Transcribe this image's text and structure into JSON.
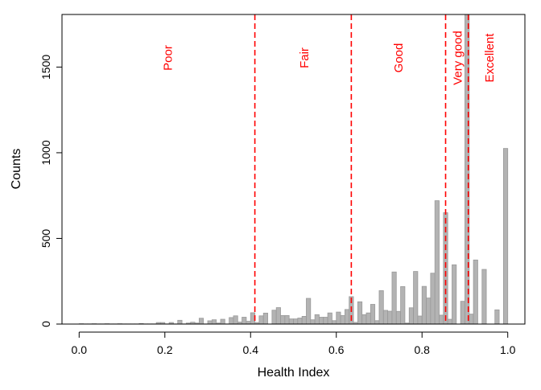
{
  "chart_data": {
    "type": "bar",
    "subtype": "histogram",
    "title": "",
    "xlabel": "Health Index",
    "ylabel": "Counts",
    "xlim": [
      -0.04,
      1.04
    ],
    "ylim": [
      0,
      1807
    ],
    "x_ticks": [
      0.0,
      0.2,
      0.4,
      0.6,
      0.8,
      1.0
    ],
    "x_tick_labels": [
      "0.0",
      "0.2",
      "0.4",
      "0.6",
      "0.8",
      "1.0"
    ],
    "y_ticks": [
      0,
      500,
      1000,
      1500
    ],
    "y_tick_labels": [
      "0",
      "500",
      "1000",
      "1500"
    ],
    "bin_width": 0.01,
    "bin_start": 0.0,
    "counts": [
      2,
      1,
      1,
      2,
      1,
      1,
      2,
      1,
      1,
      2,
      1,
      1,
      1,
      1,
      3,
      1,
      1,
      1,
      9,
      9,
      1,
      9,
      1,
      22,
      1,
      6,
      11,
      6,
      34,
      1,
      19,
      25,
      6,
      28,
      1,
      38,
      48,
      12,
      40,
      16,
      66,
      9,
      48,
      64,
      0,
      81,
      96,
      50,
      50,
      30,
      30,
      35,
      45,
      150,
      25,
      55,
      40,
      40,
      65,
      20,
      70,
      50,
      85,
      160,
      10,
      130,
      55,
      65,
      115,
      20,
      195,
      80,
      75,
      304,
      74,
      219,
      6,
      95,
      307,
      47,
      220,
      152,
      297,
      720,
      52,
      650,
      28,
      346,
      0,
      133,
      1807,
      58,
      374,
      0,
      319,
      0,
      0,
      83,
      0,
      1025
    ],
    "bar_color": "#b3b3b3",
    "bar_edge_color": "#999999",
    "grid": false,
    "legend": "none",
    "thresholds": {
      "values": [
        0.41,
        0.635,
        0.855,
        0.908
      ],
      "color": "#ff0000",
      "style": "dashed"
    },
    "annotations": [
      {
        "text": "Poor",
        "x": 0.207
      },
      {
        "text": "Fair",
        "x": 0.525
      },
      {
        "text": "Good",
        "x": 0.745
      },
      {
        "text": "Very good",
        "x": 0.883
      },
      {
        "text": "Excellent",
        "x": 0.957
      }
    ],
    "annotation_color": "#ff0000"
  }
}
